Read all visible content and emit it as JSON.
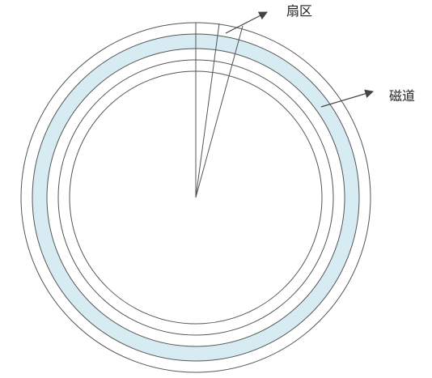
{
  "labels": {
    "sector": "扇区",
    "track": "磁道"
  },
  "colors": {
    "stroke": "#555555",
    "track_fill": "#d7ebf2",
    "arrow": "#444444",
    "background": "#ffffff"
  }
}
